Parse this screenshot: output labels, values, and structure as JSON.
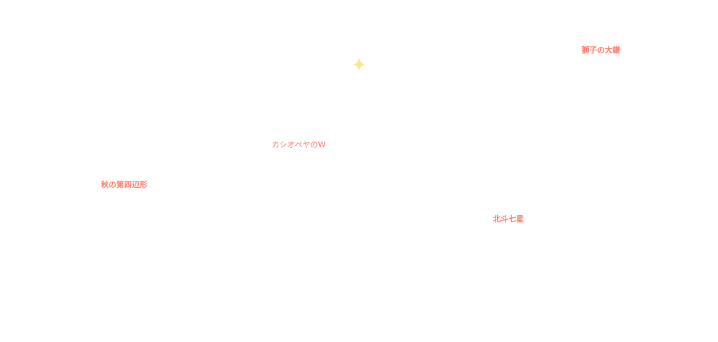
{
  "colors": {
    "label": "#ff7f6e",
    "star": "#fde68a",
    "background": "#ffffff"
  },
  "star": {
    "icon": "four-point-sparkle-icon"
  },
  "labels": {
    "leo_sickle": "獅子の大鎌",
    "cassiopeia": "カシオペヤのW",
    "autumn_square": "秋の第四辺形",
    "big_dipper": "北斗七星"
  }
}
